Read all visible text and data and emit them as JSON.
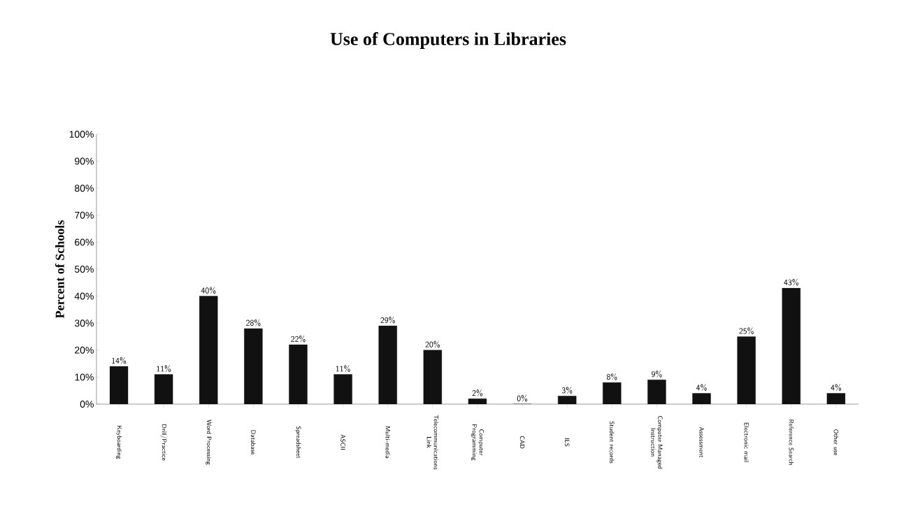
{
  "chart_data": {
    "type": "bar",
    "title": "Use of Computers in Libraries",
    "ylabel": "Percent of Schools",
    "categories": [
      "Keyboarding",
      "Drill/Practice",
      "Word Processing",
      "Database",
      "Spreadsheet",
      "ASCII",
      "Multi-media",
      "Telecommunications Link",
      "Computer Programming",
      "CAD",
      "ILS",
      "Student records",
      "Computer Managed Instruction",
      "Assessment",
      "Electronic mail",
      "Reference Search",
      "Other use"
    ],
    "values": [
      14,
      11,
      40,
      28,
      22,
      11,
      29,
      20,
      2,
      0,
      3,
      8,
      9,
      4,
      25,
      43,
      4
    ],
    "value_labels": [
      "14%",
      "11%",
      "40%",
      "28%",
      "22%",
      "11%",
      "29%",
      "20%",
      "2%",
      "0%",
      "3%",
      "8%",
      "9%",
      "4%",
      "25%",
      "43%",
      "4%"
    ],
    "color": "#111111",
    "ylim": [
      0,
      100
    ],
    "yticks": [
      {
        "value": 0,
        "label": "0%"
      },
      {
        "value": 10,
        "label": "10%"
      },
      {
        "value": 20,
        "label": "20%"
      },
      {
        "value": 30,
        "label": "30%"
      },
      {
        "value": 40,
        "label": "40%"
      },
      {
        "value": 50,
        "label": "50%"
      },
      {
        "value": 60,
        "label": "60%"
      },
      {
        "value": 70,
        "label": "70%"
      },
      {
        "value": 80,
        "label": "80%"
      },
      {
        "value": 90,
        "label": "90%"
      },
      {
        "value": 100,
        "label": "100%"
      }
    ],
    "grid": false
  }
}
